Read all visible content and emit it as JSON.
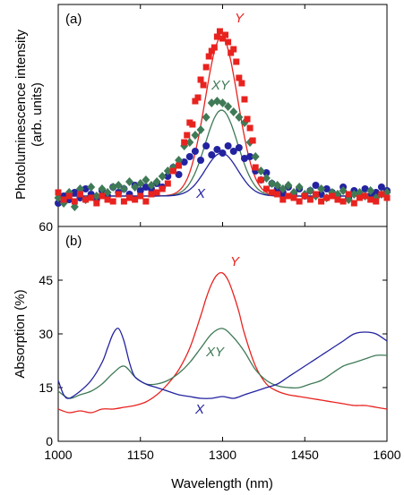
{
  "chart_data": [
    {
      "panel_label": "(a)",
      "type": "scatter",
      "ylabel": "Photoluminescence intensity (arb. units)",
      "ylabel_lines": [
        "Photoluminescence intensity",
        "(arb. units)"
      ],
      "yticks_shown": false,
      "xlim": [
        1000,
        1600
      ],
      "ylim": [
        0,
        1
      ],
      "series": [
        {
          "name": "Y",
          "color": "#e8231f",
          "marker": "square",
          "x": [
            1000,
            1010,
            1020,
            1030,
            1040,
            1050,
            1060,
            1070,
            1080,
            1090,
            1100,
            1110,
            1120,
            1130,
            1140,
            1150,
            1160,
            1170,
            1180,
            1190,
            1200,
            1210,
            1220,
            1230,
            1235,
            1240,
            1245,
            1250,
            1255,
            1260,
            1265,
            1270,
            1275,
            1280,
            1285,
            1290,
            1295,
            1300,
            1305,
            1310,
            1315,
            1320,
            1325,
            1330,
            1335,
            1340,
            1345,
            1350,
            1355,
            1360,
            1370,
            1380,
            1390,
            1400,
            1410,
            1420,
            1430,
            1440,
            1450,
            1460,
            1470,
            1480,
            1490,
            1500,
            1510,
            1520,
            1530,
            1540,
            1550,
            1560,
            1570,
            1580,
            1590,
            1600
          ],
          "y": [
            0.1,
            0.06,
            0.08,
            0.05,
            0.09,
            0.06,
            0.07,
            0.04,
            0.08,
            0.06,
            0.05,
            0.09,
            0.05,
            0.07,
            0.06,
            0.08,
            0.05,
            0.09,
            0.1,
            0.12,
            0.15,
            0.22,
            0.25,
            0.38,
            0.42,
            0.49,
            0.48,
            0.61,
            0.63,
            0.73,
            0.7,
            0.8,
            0.86,
            0.89,
            0.91,
            0.97,
            1.0,
            0.96,
            0.98,
            0.94,
            0.88,
            0.9,
            0.83,
            0.74,
            0.71,
            0.62,
            0.51,
            0.46,
            0.39,
            0.24,
            0.17,
            0.12,
            0.1,
            0.09,
            0.06,
            0.08,
            0.07,
            0.05,
            0.08,
            0.06,
            0.09,
            0.05,
            0.07,
            0.08,
            0.06,
            0.05,
            0.09,
            0.04,
            0.07,
            0.08,
            0.06,
            0.05,
            0.09,
            0.07
          ],
          "fit_peak": 0.97
        },
        {
          "name": "XY",
          "color": "#3f7a56",
          "marker": "diamond",
          "x": [
            1000,
            1010,
            1020,
            1030,
            1040,
            1050,
            1060,
            1070,
            1080,
            1090,
            1100,
            1110,
            1120,
            1130,
            1140,
            1150,
            1160,
            1170,
            1180,
            1190,
            1200,
            1210,
            1220,
            1230,
            1240,
            1250,
            1260,
            1270,
            1280,
            1290,
            1300,
            1310,
            1320,
            1330,
            1340,
            1350,
            1360,
            1370,
            1380,
            1390,
            1400,
            1410,
            1420,
            1430,
            1440,
            1450,
            1460,
            1470,
            1480,
            1490,
            1500,
            1510,
            1520,
            1530,
            1540,
            1550,
            1560,
            1570,
            1580,
            1590,
            1600
          ],
          "y": [
            0.07,
            0.04,
            0.1,
            0.02,
            0.12,
            0.06,
            0.13,
            0.08,
            0.12,
            0.1,
            0.13,
            0.14,
            0.12,
            0.16,
            0.13,
            0.15,
            0.17,
            0.14,
            0.16,
            0.19,
            0.22,
            0.24,
            0.28,
            0.36,
            0.38,
            0.42,
            0.45,
            0.52,
            0.6,
            0.61,
            0.6,
            0.58,
            0.55,
            0.52,
            0.49,
            0.38,
            0.3,
            0.22,
            0.18,
            0.15,
            0.14,
            0.12,
            0.14,
            0.1,
            0.13,
            0.09,
            0.11,
            0.08,
            0.12,
            0.07,
            0.1,
            0.09,
            0.11,
            0.06,
            0.09,
            0.1,
            0.08,
            0.11,
            0.07,
            0.09,
            0.1
          ],
          "fit_peak": 0.56
        },
        {
          "name": "X",
          "color": "#2323a0",
          "marker": "circle",
          "x": [
            1000,
            1010,
            1020,
            1030,
            1040,
            1050,
            1060,
            1070,
            1080,
            1090,
            1100,
            1110,
            1120,
            1130,
            1140,
            1150,
            1160,
            1170,
            1180,
            1190,
            1200,
            1210,
            1220,
            1230,
            1240,
            1250,
            1260,
            1270,
            1280,
            1290,
            1300,
            1310,
            1320,
            1330,
            1340,
            1350,
            1360,
            1370,
            1380,
            1390,
            1400,
            1410,
            1420,
            1430,
            1440,
            1450,
            1460,
            1470,
            1480,
            1490,
            1500,
            1510,
            1520,
            1530,
            1540,
            1550,
            1560,
            1570,
            1580,
            1590,
            1600
          ],
          "y": [
            0.04,
            0.08,
            0.06,
            0.1,
            0.07,
            0.12,
            0.09,
            0.06,
            0.11,
            0.08,
            0.13,
            0.1,
            0.12,
            0.09,
            0.14,
            0.11,
            0.13,
            0.12,
            0.15,
            0.13,
            0.19,
            0.24,
            0.2,
            0.27,
            0.3,
            0.33,
            0.28,
            0.36,
            0.31,
            0.34,
            0.32,
            0.36,
            0.33,
            0.35,
            0.29,
            0.3,
            0.22,
            0.17,
            0.21,
            0.15,
            0.12,
            0.1,
            0.13,
            0.09,
            0.12,
            0.08,
            0.11,
            0.14,
            0.09,
            0.12,
            0.1,
            0.08,
            0.13,
            0.07,
            0.11,
            0.09,
            0.12,
            0.08,
            0.1,
            0.13,
            0.11
          ],
          "fit_peak": 0.32
        }
      ]
    },
    {
      "panel_label": "(b)",
      "type": "line",
      "ylabel": "Absorption (%)",
      "xlabel": "Wavelength (nm)",
      "xlim": [
        1000,
        1600
      ],
      "ylim": [
        0,
        60
      ],
      "xticks": [
        1000,
        1150,
        1300,
        1450,
        1600
      ],
      "yticks": [
        0,
        15,
        30,
        45,
        60
      ],
      "series": [
        {
          "name": "Y",
          "color": "#e8231f",
          "x": [
            1000,
            1020,
            1040,
            1060,
            1080,
            1100,
            1120,
            1140,
            1160,
            1180,
            1200,
            1220,
            1240,
            1260,
            1270,
            1280,
            1290,
            1300,
            1310,
            1320,
            1330,
            1340,
            1360,
            1380,
            1400,
            1420,
            1440,
            1460,
            1480,
            1500,
            1520,
            1540,
            1560,
            1580,
            1600
          ],
          "y": [
            9,
            8,
            8.5,
            8,
            9,
            9,
            9.5,
            10,
            11,
            13,
            16,
            20,
            26,
            35,
            40,
            44,
            46.5,
            47,
            45,
            41,
            36,
            30,
            21,
            16,
            14,
            13,
            12.5,
            12,
            11.5,
            11,
            10.5,
            10,
            10,
            9.5,
            9
          ]
        },
        {
          "name": "XY",
          "color": "#3f7a56",
          "x": [
            1000,
            1020,
            1040,
            1060,
            1080,
            1100,
            1120,
            1140,
            1160,
            1180,
            1200,
            1220,
            1240,
            1260,
            1280,
            1300,
            1320,
            1340,
            1360,
            1380,
            1400,
            1420,
            1440,
            1460,
            1480,
            1500,
            1520,
            1540,
            1560,
            1580,
            1600
          ],
          "y": [
            14,
            12,
            13,
            14,
            16,
            19,
            21,
            18,
            16,
            16,
            17,
            19,
            22,
            26,
            30,
            31.5,
            29,
            25,
            20,
            17,
            15.5,
            15,
            15,
            16,
            17,
            19,
            21,
            22,
            23,
            24,
            24
          ]
        },
        {
          "name": "X",
          "color": "#2323a0",
          "x": [
            1000,
            1010,
            1020,
            1040,
            1060,
            1080,
            1090,
            1100,
            1110,
            1120,
            1130,
            1140,
            1160,
            1180,
            1200,
            1220,
            1240,
            1260,
            1280,
            1300,
            1320,
            1340,
            1360,
            1380,
            1400,
            1420,
            1440,
            1460,
            1480,
            1500,
            1520,
            1540,
            1560,
            1580,
            1600
          ],
          "y": [
            17,
            13,
            12,
            14,
            17,
            22,
            26,
            30,
            31.5,
            28,
            22,
            18,
            16,
            15,
            14,
            13,
            12.5,
            12,
            12,
            12.5,
            12,
            13,
            14,
            15,
            16,
            18,
            20,
            22,
            24,
            26,
            28,
            30,
            30.5,
            30,
            28
          ]
        }
      ]
    }
  ],
  "labels": {
    "a_Y": "Y",
    "a_XY": "XY",
    "a_X": "X",
    "b_Y": "Y",
    "b_XY": "XY",
    "b_X": "X"
  }
}
